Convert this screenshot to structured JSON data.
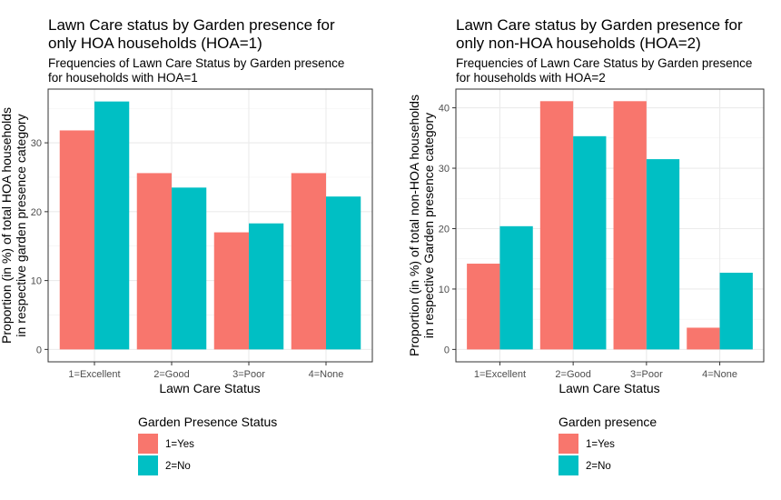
{
  "chart_data": [
    {
      "type": "bar",
      "title_line1": "Lawn Care status by Garden presence for",
      "title_line2": "only HOA households (HOA=1)",
      "subtitle_line1": "Frequencies of Lawn Care Status by Garden presence",
      "subtitle_line2": "for households with HOA=1",
      "xlabel": "Lawn Care Status",
      "ylabel_line1": "Proportion (in %) of total HOA households",
      "ylabel_line2": "in respective garden presence category",
      "categories": [
        "1=Excellent",
        "2=Good",
        "3=Poor",
        "4=None"
      ],
      "ylim": [
        -1.8,
        37.8
      ],
      "yticks": [
        0,
        10,
        20,
        30
      ],
      "ytick_labels": [
        "0",
        "10",
        "20",
        "30"
      ],
      "grid": true,
      "legend_title": "Garden Presence Status",
      "legend_position": "bottom",
      "series": [
        {
          "name": "1=Yes",
          "color": "#F8766D",
          "values": [
            31.8,
            25.6,
            17.0,
            25.6
          ]
        },
        {
          "name": "2=No",
          "color": "#00BFC4",
          "values": [
            36.0,
            23.5,
            18.3,
            22.2
          ]
        }
      ]
    },
    {
      "type": "bar",
      "title_line1": "Lawn Care status by Garden presence for",
      "title_line2": "only non-HOA households (HOA=2)",
      "subtitle_line1": "Frequencies of Lawn Care Status by Garden presence",
      "subtitle_line2": "for households with HOA=2",
      "xlabel": "Lawn Care Status",
      "ylabel_line1": "Proportion (in %) of total non-HOA households",
      "ylabel_line2": "in respective Garden presence category",
      "categories": [
        "1=Excellent",
        "2=Good",
        "3=Poor",
        "4=None"
      ],
      "ylim": [
        -2.05,
        43.1
      ],
      "yticks": [
        0,
        10,
        20,
        30,
        40
      ],
      "ytick_labels": [
        "0",
        "10",
        "20",
        "30",
        "40"
      ],
      "grid": true,
      "legend_title": "Garden presence",
      "legend_position": "bottom",
      "series": [
        {
          "name": "1=Yes",
          "color": "#F8766D",
          "values": [
            14.2,
            41.1,
            41.1,
            3.6
          ]
        },
        {
          "name": "2=No",
          "color": "#00BFC4",
          "values": [
            20.4,
            35.3,
            31.5,
            12.7
          ]
        }
      ]
    }
  ]
}
